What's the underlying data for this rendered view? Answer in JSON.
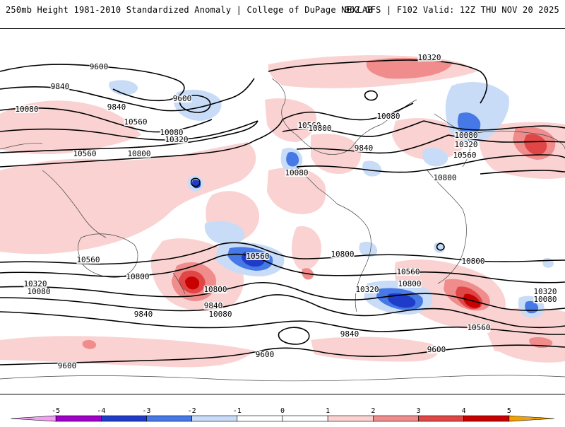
{
  "header": {
    "left": "250mb Height 1981-2010 Standardized Anomaly | College of DuPage NEXLAB",
    "right": "06Z GFS | F102 Valid: 12Z THU NOV 20 2025"
  },
  "colors": {
    "neg5": "#f0a0f0",
    "neg4": "#a000c8",
    "neg3": "#1e3cc8",
    "neg2": "#4678e6",
    "neg1": "#c8dcf8",
    "zero": "#ffffff",
    "pos1": "#fad2d2",
    "pos2": "#f08c8c",
    "pos3": "#e04646",
    "pos4": "#c80000",
    "pos5": "#f0a000",
    "pos6": "#f5c800",
    "contour": "#000000",
    "land": "#444444"
  },
  "colorbar": {
    "ticks": [
      "-5",
      "-4",
      "-3",
      "-2",
      "-1",
      "0",
      "1",
      "2",
      "3",
      "4",
      "5"
    ]
  },
  "contour_labels": [
    {
      "text": "9600"
    },
    {
      "text": "9840"
    },
    {
      "text": "10080"
    },
    {
      "text": "9600"
    },
    {
      "text": "9840"
    },
    {
      "text": "10080"
    },
    {
      "text": "10320"
    },
    {
      "text": "10560"
    },
    {
      "text": "10560"
    },
    {
      "text": "10800"
    },
    {
      "text": "10320"
    },
    {
      "text": "10080"
    },
    {
      "text": "10560"
    },
    {
      "text": "10800"
    },
    {
      "text": "9840"
    },
    {
      "text": "10080"
    },
    {
      "text": "10080"
    },
    {
      "text": "10320"
    },
    {
      "text": "10560"
    },
    {
      "text": "10800"
    },
    {
      "text": "10800"
    },
    {
      "text": "10560"
    },
    {
      "text": "10800"
    },
    {
      "text": "10560"
    },
    {
      "text": "10800"
    },
    {
      "text": "10800"
    },
    {
      "text": "10320"
    },
    {
      "text": "10080"
    },
    {
      "text": "10560"
    },
    {
      "text": "10800"
    },
    {
      "text": "10320"
    },
    {
      "text": "10080"
    },
    {
      "text": "9840"
    },
    {
      "text": "9840"
    },
    {
      "text": "10560"
    },
    {
      "text": "10320"
    },
    {
      "text": "10080"
    },
    {
      "text": "9840"
    },
    {
      "text": "9600"
    },
    {
      "text": "9600"
    },
    {
      "text": "9600"
    }
  ]
}
